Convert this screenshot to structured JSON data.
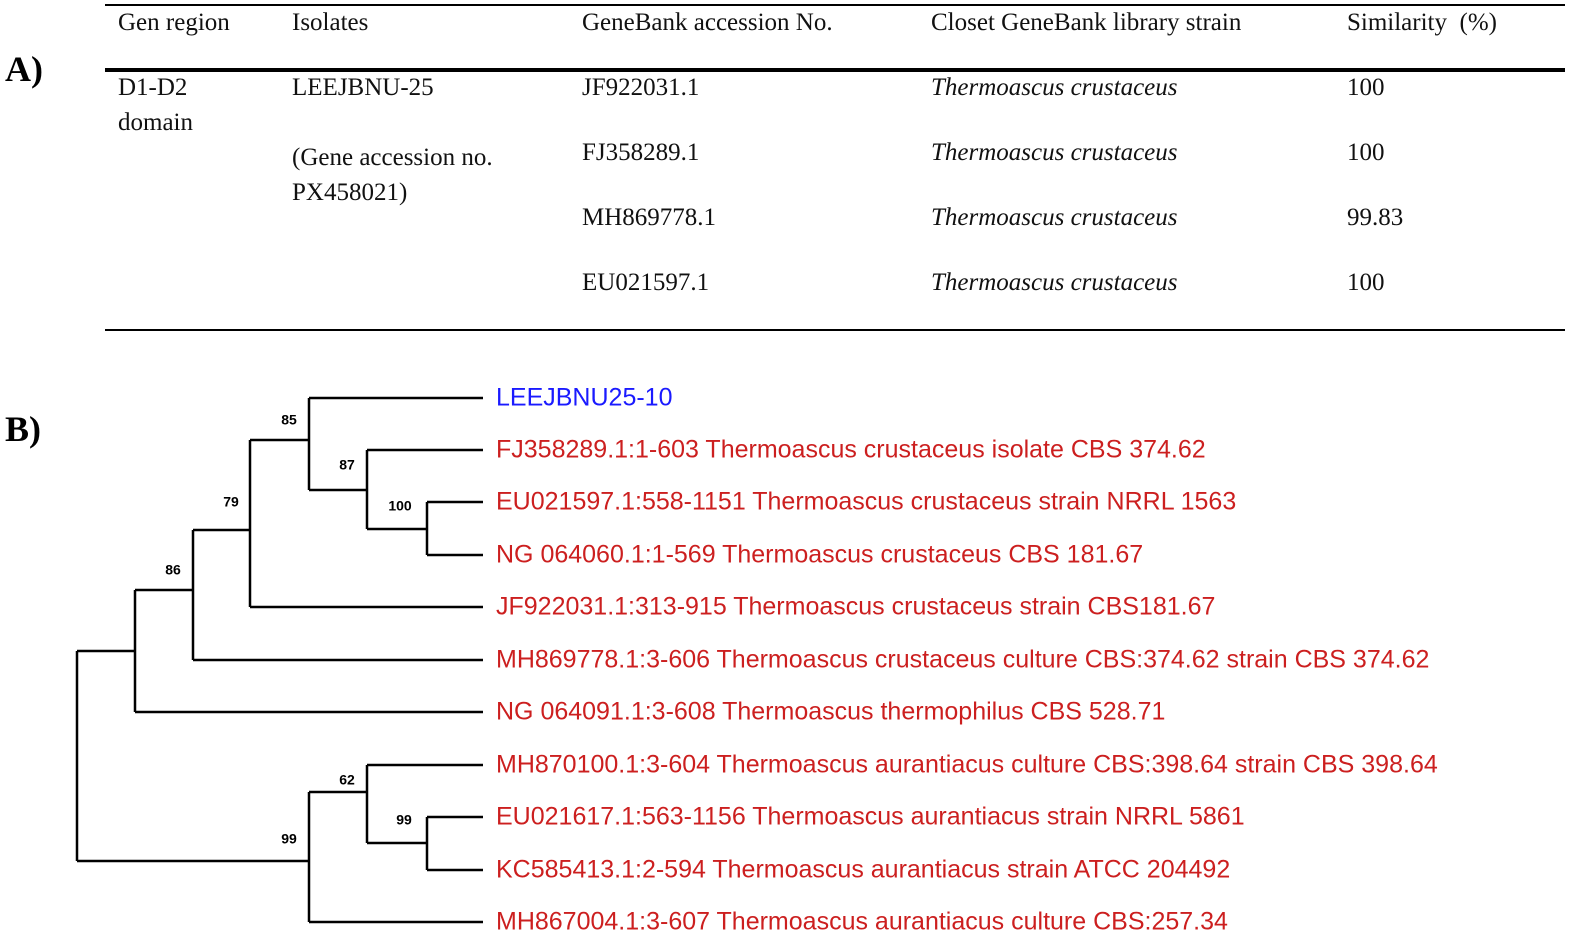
{
  "panels": [
    "A)",
    "B)"
  ],
  "table": {
    "header": [
      "Gen region",
      "Isolates",
      "GeneBank accession No.",
      "Closet GeneBank library strain",
      "Similarity  (%)"
    ],
    "region": "D1-D2 domain",
    "isolate": "LEEJBNU-25",
    "isolate_note": "(Gene accession no. PX458021)",
    "rows": [
      {
        "accession": "JF922031.1",
        "strain": "Thermoascus crustaceus",
        "similarity": 100
      },
      {
        "accession": "FJ358289.1",
        "strain": "Thermoascus crustaceus",
        "similarity": 100
      },
      {
        "accession": "MH869778.1",
        "strain": "Thermoascus crustaceus",
        "similarity": 99.83
      },
      {
        "accession": "EU021597.1",
        "strain": "Thermoascus crustaceus",
        "similarity": 100
      }
    ]
  },
  "tree": {
    "leaves": [
      {
        "label": "LEEJBNU25-10",
        "color": "#1a1aff"
      },
      {
        "label": "FJ358289.1:1-603 Thermoascus crustaceus isolate CBS 374.62",
        "color": "#cc1f1f"
      },
      {
        "label": "EU021597.1:558-1151 Thermoascus crustaceus strain NRRL 1563",
        "color": "#cc1f1f"
      },
      {
        "label": "NG 064060.1:1-569 Thermoascus crustaceus CBS 181.67",
        "color": "#cc1f1f"
      },
      {
        "label": "JF922031.1:313-915 Thermoascus crustaceus strain CBS181.67",
        "color": "#cc1f1f"
      },
      {
        "label": "MH869778.1:3-606 Thermoascus crustaceus culture CBS:374.62 strain CBS 374.62",
        "color": "#cc1f1f"
      },
      {
        "label": "NG 064091.1:3-608 Thermoascus thermophilus CBS 528.71",
        "color": "#cc1f1f"
      },
      {
        "label": "MH870100.1:3-604 Thermoascus aurantiacus culture CBS:398.64 strain CBS 398.64",
        "color": "#cc1f1f"
      },
      {
        "label": "EU021617.1:563-1156 Thermoascus aurantiacus strain NRRL 5861",
        "color": "#cc1f1f"
      },
      {
        "label": "KC585413.1:2-594 Thermoascus aurantiacus strain ATCC 204492",
        "color": "#cc1f1f"
      },
      {
        "label": "MH867004.1:3-607 Thermoascus aurantiacus culture CBS:257.34",
        "color": "#cc1f1f"
      }
    ],
    "bootstrap": [
      85,
      87,
      100,
      79,
      86,
      62,
      99,
      99
    ]
  }
}
